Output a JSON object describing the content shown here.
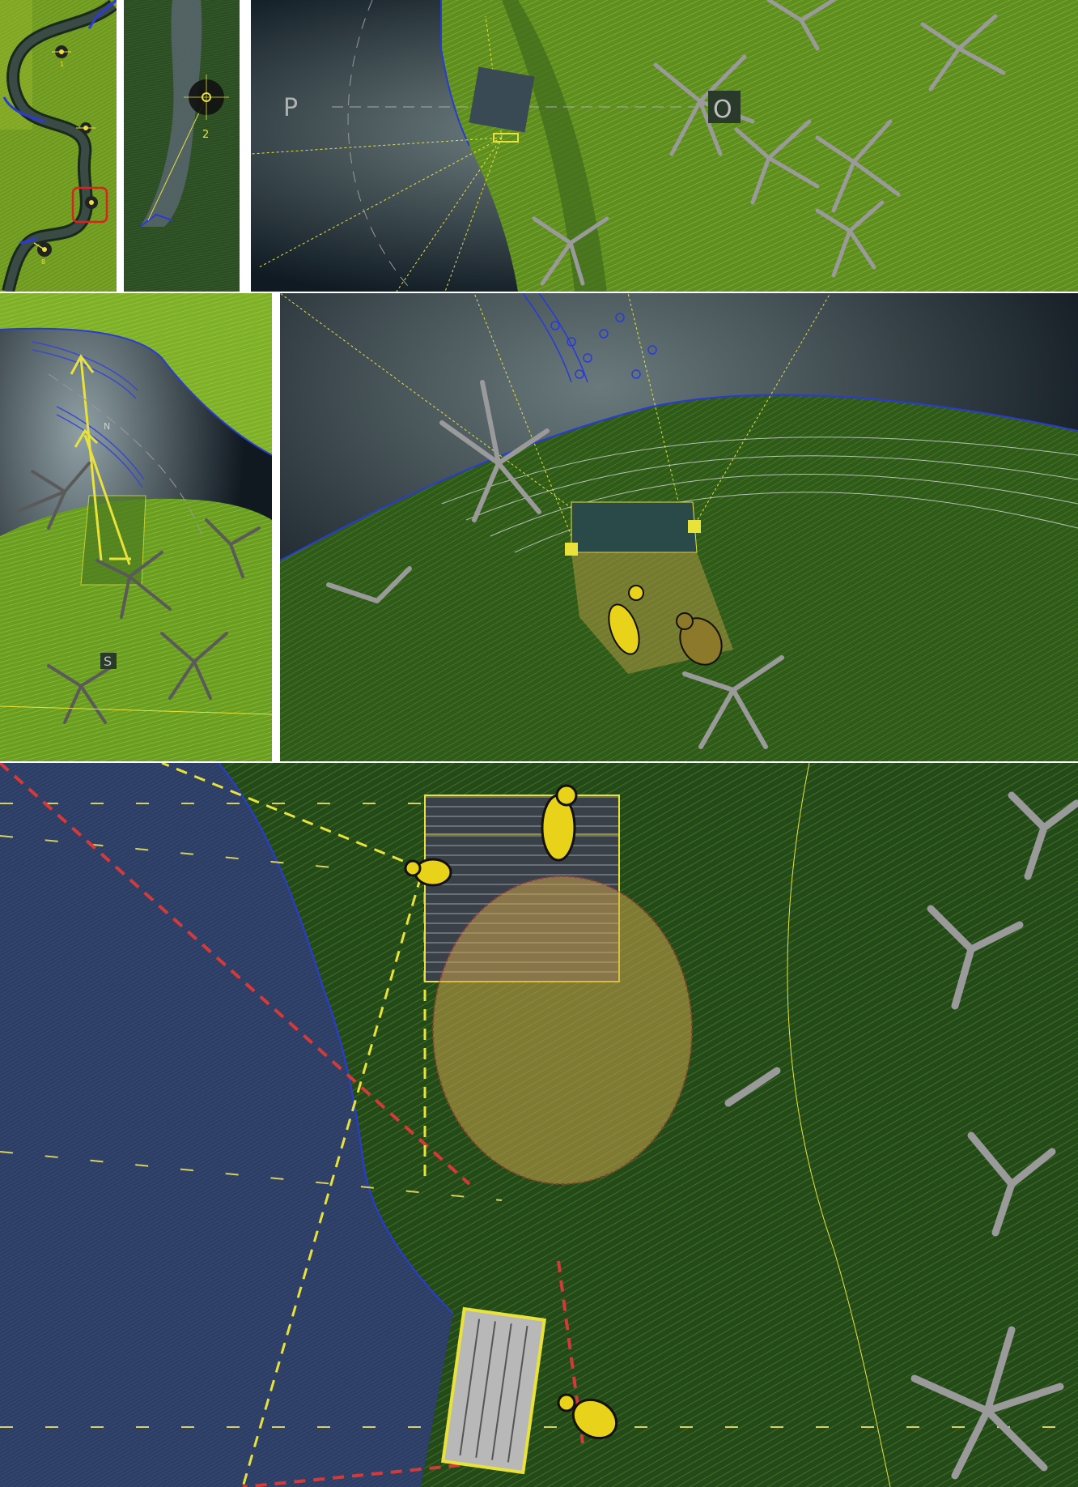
{
  "panels": {
    "overview_map": {
      "markers": [
        "1",
        "",
        "",
        "",
        "8"
      ]
    },
    "satellite_detail": {
      "marker": "2"
    },
    "top_plan": {
      "labels": [
        "P",
        "O"
      ]
    },
    "sight_section": {
      "labels": [
        "N",
        "S"
      ]
    },
    "platform_plan": {
      "labels": []
    },
    "deck_detail": {
      "labels": []
    }
  },
  "colors": {
    "grass": "#7fa82a",
    "grass_dark": "#3f6a1e",
    "water": "#1c2a3a",
    "sightline": "#e8e23a",
    "boundary": "#d43a3a",
    "river_edge": "#2a3ad8",
    "tree": "#9a9a9a"
  }
}
